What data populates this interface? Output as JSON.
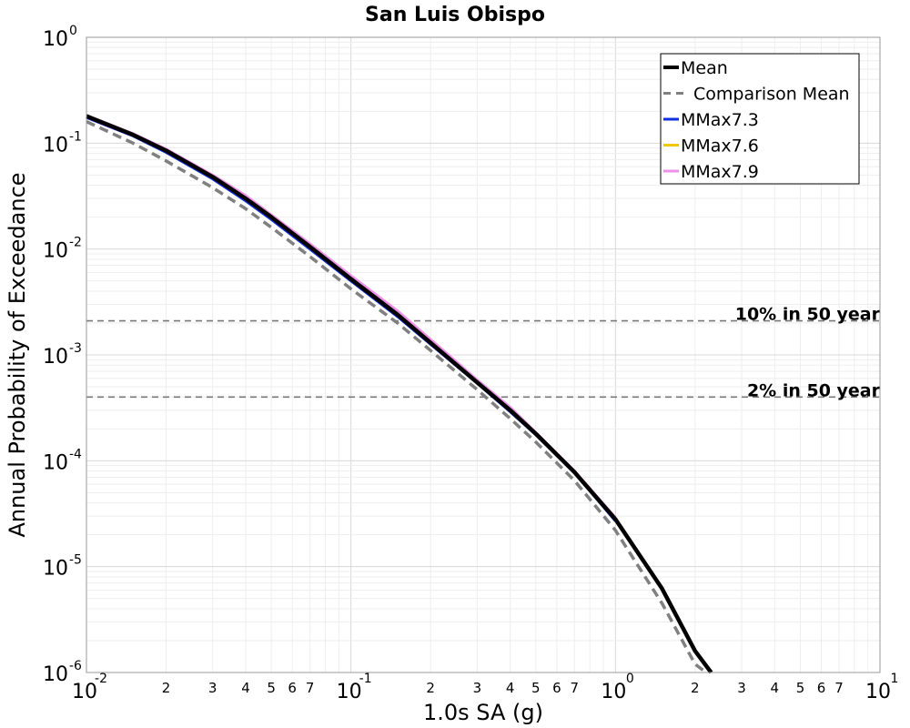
{
  "chart_data": {
    "type": "line",
    "title": "San Luis Obispo",
    "xlabel": "1.0s SA (g)",
    "ylabel": "Annual Probability of Exceedance",
    "x_scale": "log",
    "y_scale": "log",
    "xlim": [
      0.01,
      10
    ],
    "ylim": [
      1e-06,
      1
    ],
    "grid": true,
    "legend_position": "top-right",
    "x_major_ticks": [
      {
        "base": "10",
        "exp": "-2"
      },
      {
        "base": "10",
        "exp": "-1"
      },
      {
        "base": "10",
        "exp": "0"
      },
      {
        "base": "10",
        "exp": "1"
      }
    ],
    "y_major_ticks": [
      {
        "base": "10",
        "exp": "-6"
      },
      {
        "base": "10",
        "exp": "-5"
      },
      {
        "base": "10",
        "exp": "-4"
      },
      {
        "base": "10",
        "exp": "-3"
      },
      {
        "base": "10",
        "exp": "-2"
      },
      {
        "base": "10",
        "exp": "-1"
      },
      {
        "base": "10",
        "exp": "0"
      }
    ],
    "x_minor_tick_labels": [
      "2",
      "3",
      "4",
      "5",
      "6",
      "7"
    ],
    "series": [
      {
        "name": "Mean",
        "color": "#000000",
        "style": "solid",
        "x": [
          0.01,
          0.015,
          0.02,
          0.03,
          0.04,
          0.05,
          0.07,
          0.1,
          0.15,
          0.2,
          0.3,
          0.4,
          0.5,
          0.7,
          1.0,
          1.5,
          2.0,
          2.3
        ],
        "y": [
          0.18,
          0.12,
          0.085,
          0.048,
          0.03,
          0.02,
          0.0105,
          0.0052,
          0.0024,
          0.0013,
          0.00055,
          0.0003,
          0.00018,
          7.8e-05,
          2.8e-05,
          6.2e-06,
          1.6e-06,
          1e-06
        ]
      },
      {
        "name": "Comparison Mean",
        "color": "#808080",
        "style": "dashed",
        "x": [
          0.01,
          0.015,
          0.02,
          0.03,
          0.04,
          0.05,
          0.07,
          0.1,
          0.15,
          0.2,
          0.3,
          0.4,
          0.5,
          0.7,
          1.0,
          1.5,
          2.0,
          2.2
        ],
        "y": [
          0.16,
          0.1,
          0.068,
          0.038,
          0.024,
          0.016,
          0.0085,
          0.0042,
          0.002,
          0.0011,
          0.00047,
          0.00025,
          0.00015,
          6.5e-05,
          2.2e-05,
          4.5e-06,
          1.2e-06,
          1e-06
        ]
      },
      {
        "name": "MMax7.3",
        "color": "#1030e0",
        "style": "solid",
        "x": [
          0.01,
          0.015,
          0.02,
          0.03,
          0.04,
          0.05,
          0.07,
          0.1,
          0.15,
          0.2,
          0.3,
          0.4,
          0.5,
          0.7,
          1.0
        ],
        "y": [
          0.175,
          0.117,
          0.082,
          0.046,
          0.0285,
          0.019,
          0.01,
          0.005,
          0.0023,
          0.00126,
          0.00054,
          0.00029,
          0.000176,
          7.7e-05,
          2.7e-05
        ]
      },
      {
        "name": "MMax7.6",
        "color": "#f0c800",
        "style": "solid",
        "x": [
          0.01,
          0.015,
          0.02,
          0.03,
          0.04,
          0.05,
          0.07,
          0.1,
          0.15,
          0.2,
          0.3,
          0.4,
          0.5,
          0.7,
          1.0
        ],
        "y": [
          0.181,
          0.121,
          0.086,
          0.049,
          0.031,
          0.0205,
          0.0108,
          0.0054,
          0.0025,
          0.00135,
          0.00057,
          0.00031,
          0.000183,
          7.9e-05,
          2.85e-05
        ]
      },
      {
        "name": "MMax7.9",
        "color": "#f090e8",
        "style": "solid",
        "x": [
          0.01,
          0.015,
          0.02,
          0.03,
          0.04,
          0.05,
          0.07,
          0.1,
          0.15,
          0.2,
          0.3,
          0.4,
          0.5,
          0.7,
          1.0
        ],
        "y": [
          0.183,
          0.123,
          0.088,
          0.05,
          0.032,
          0.021,
          0.0112,
          0.0056,
          0.0026,
          0.0014,
          0.00058,
          0.00032,
          0.000185,
          8e-05,
          2.9e-05
        ]
      }
    ],
    "reference_lines": [
      {
        "label": "10% in 50 year",
        "y": 0.0021
      },
      {
        "label": "2% in 50 year",
        "y": 0.0004
      }
    ]
  }
}
